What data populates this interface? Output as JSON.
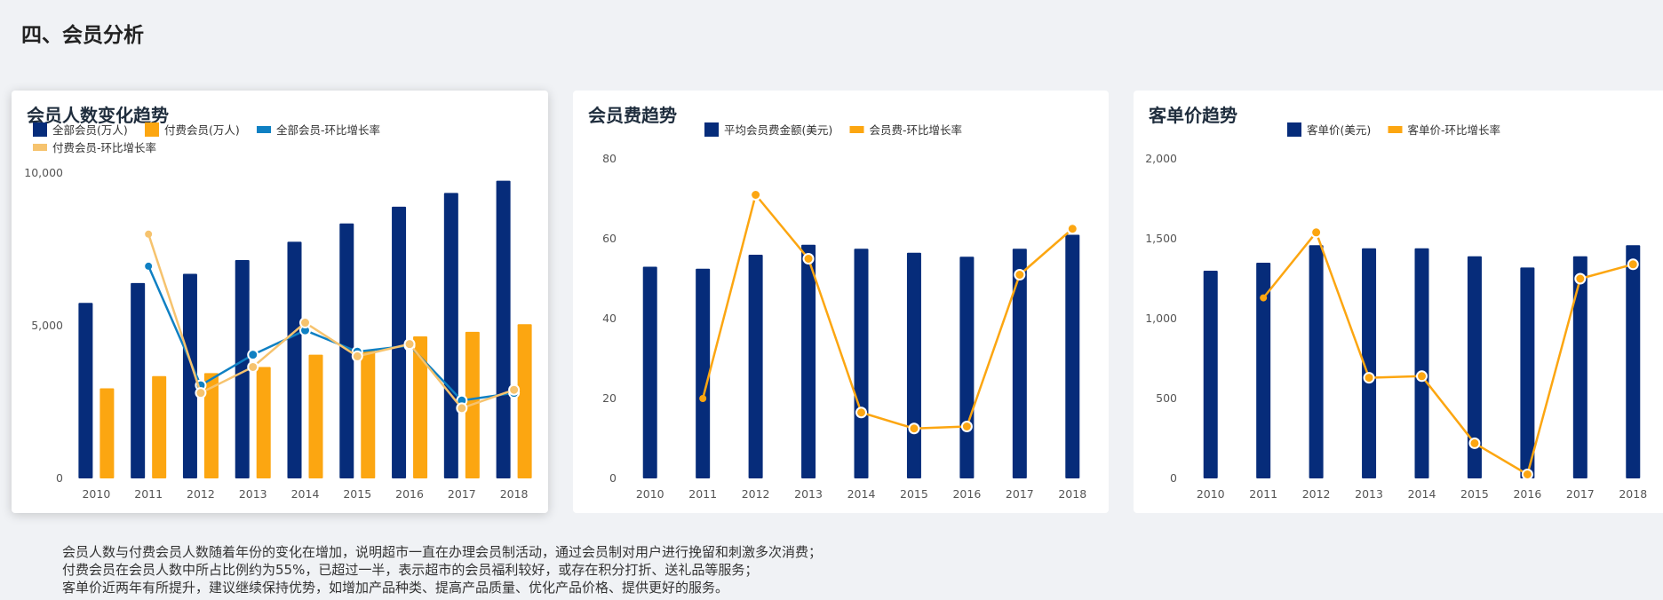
{
  "page": {
    "title": "四、会员分析"
  },
  "colors": {
    "navy": "#062c7a",
    "orange": "#fca611",
    "blue": "#0f80c3",
    "light_orange": "#f6c36e"
  },
  "charts": {
    "members": {
      "title": "会员人数变化趋势"
    },
    "fee": {
      "title": "会员费趋势"
    },
    "aov": {
      "title": "客单价趋势"
    }
  },
  "chart_data": [
    {
      "type": "bar",
      "title": "会员人数变化趋势",
      "categories": [
        "2010",
        "2011",
        "2012",
        "2013",
        "2014",
        "2015",
        "2016",
        "2017",
        "2018"
      ],
      "legend": [
        "全部会员(万人)",
        "付费会员(万人)",
        "全部会员-环比增长率",
        "付费会员-环比增长率"
      ],
      "ylim": [
        0,
        10000
      ],
      "yticks": [
        "0",
        "5,000",
        "10,000"
      ],
      "series": [
        {
          "name": "全部会员(万人)",
          "type": "bar",
          "color": "#062c7a",
          "values": [
            5750,
            6400,
            6700,
            7150,
            7750,
            8350,
            8900,
            9350,
            9750
          ]
        },
        {
          "name": "付费会员(万人)",
          "type": "bar",
          "color": "#fca611",
          "values": [
            2950,
            3350,
            3450,
            3650,
            4050,
            4200,
            4650,
            4800,
            5050
          ]
        },
        {
          "name": "全部会员-环比增长率",
          "type": "line",
          "color": "#0f80c3",
          "values": [
            null,
            6950,
            3050,
            4050,
            4850,
            4150,
            4350,
            2550,
            2800
          ]
        },
        {
          "name": "付费会员-环比增长率",
          "type": "line",
          "color": "#f6c36e",
          "values": [
            null,
            8000,
            2800,
            3650,
            5100,
            4000,
            4400,
            2300,
            2900
          ]
        }
      ],
      "grid": false,
      "legend_position": "top-left"
    },
    {
      "type": "bar",
      "title": "会员费趋势",
      "categories": [
        "2010",
        "2011",
        "2012",
        "2013",
        "2014",
        "2015",
        "2016",
        "2017",
        "2018"
      ],
      "legend": [
        "平均会员费金额(美元)",
        "会员费-环比增长率"
      ],
      "ylim": [
        0,
        80
      ],
      "yticks": [
        "0",
        "20",
        "40",
        "60",
        "80"
      ],
      "series": [
        {
          "name": "平均会员费金额(美元)",
          "type": "bar",
          "color": "#062c7a",
          "values": [
            53,
            52.5,
            56,
            58.5,
            57.5,
            56.5,
            55.5,
            57.5,
            61
          ]
        },
        {
          "name": "会员费-环比增长率",
          "type": "line",
          "color": "#fca611",
          "values": [
            null,
            20,
            71,
            55,
            16.5,
            12.5,
            13,
            51,
            62.5
          ]
        }
      ],
      "grid": false,
      "legend_position": "top-center"
    },
    {
      "type": "bar",
      "title": "客单价趋势",
      "categories": [
        "2010",
        "2011",
        "2012",
        "2013",
        "2014",
        "2015",
        "2016",
        "2017",
        "2018"
      ],
      "legend": [
        "客单价(美元)",
        "客单价-环比增长率"
      ],
      "ylim": [
        0,
        2000
      ],
      "yticks": [
        "0",
        "500",
        "1,000",
        "1,500",
        "2,000"
      ],
      "series": [
        {
          "name": "客单价(美元)",
          "type": "bar",
          "color": "#062c7a",
          "values": [
            1300,
            1350,
            1460,
            1440,
            1440,
            1390,
            1320,
            1390,
            1460
          ]
        },
        {
          "name": "客单价-环比增长率",
          "type": "line",
          "color": "#fca611",
          "values": [
            null,
            1130,
            1540,
            630,
            640,
            220,
            25,
            1250,
            1340
          ]
        }
      ],
      "grid": false,
      "legend_position": "top-center"
    }
  ],
  "notes": [
    "会员人数与付费会员人数随着年份的变化在增加，说明超市一直在办理会员制活动，通过会员制对用户进行挽留和刺激多次消费；",
    "付费会员在会员人数中所占比例约为55%，已超过一半，表示超市的会员福利较好，或存在积分打折、送礼品等服务；",
    "客单价近两年有所提升，建议继续保持优势，如增加产品种类、提高产品质量、优化产品价格、提供更好的服务。"
  ]
}
